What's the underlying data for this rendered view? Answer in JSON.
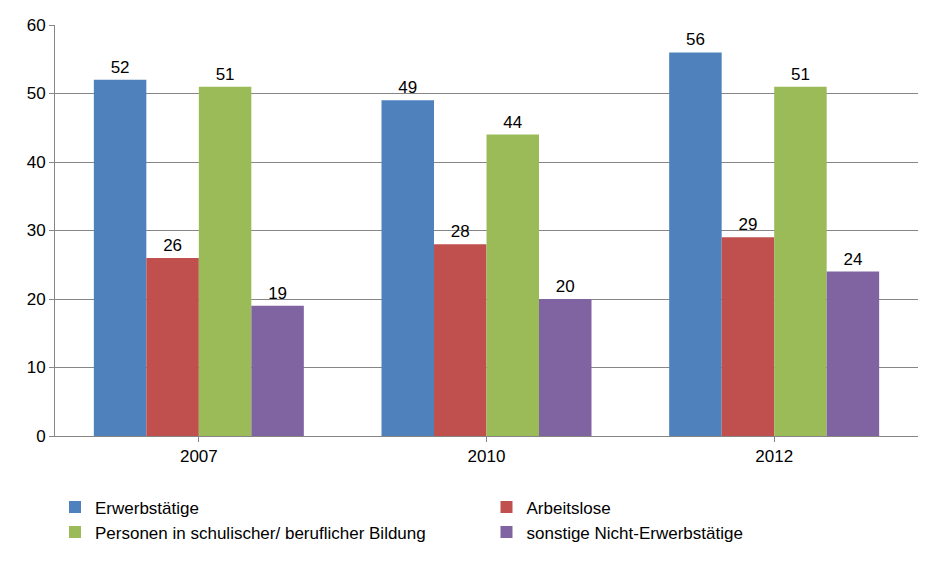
{
  "chart_data": {
    "type": "bar",
    "categories": [
      "2007",
      "2010",
      "2012"
    ],
    "series": [
      {
        "name": "Erwerbstätige",
        "color": "#4f81bd",
        "values": [
          52,
          49,
          56
        ]
      },
      {
        "name": "Arbeitslose",
        "color": "#c0504d",
        "values": [
          26,
          28,
          29
        ]
      },
      {
        "name": "Personen in schulischer/ beruflicher Bildung",
        "color": "#9bbb59",
        "values": [
          51,
          44,
          51
        ]
      },
      {
        "name": "sonstige Nicht-Erwerbstätige",
        "color": "#8064a2",
        "values": [
          19,
          20,
          24
        ]
      }
    ],
    "ylim": [
      0,
      60
    ],
    "yticks": [
      0,
      10,
      20,
      30,
      40,
      50,
      60
    ],
    "grid": true,
    "legend": "bottom",
    "data_labels": true
  }
}
